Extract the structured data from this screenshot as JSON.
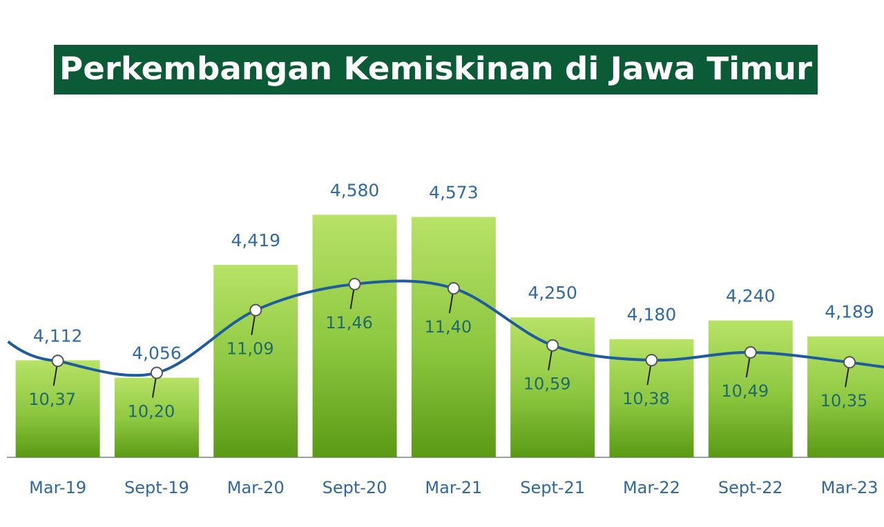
{
  "chart_data": {
    "type": "bar",
    "title": "Perkembangan Kemiskinan di Jawa Timur",
    "categories": [
      "Mar-19",
      "Sept-19",
      "Mar-20",
      "Sept-20",
      "Mar-21",
      "Sept-21",
      "Mar-22",
      "Sept-22",
      "Mar-23"
    ],
    "series": [
      {
        "type": "bar",
        "color": "#5a9a14",
        "values": [
          4.112,
          4.056,
          4.419,
          4.58,
          4.573,
          4.25,
          4.18,
          4.24,
          4.189
        ],
        "value_labels": [
          "4,112",
          "4,056",
          "4,419",
          "4,580",
          "4,573",
          "4,250",
          "4,180",
          "4,240",
          "4,189"
        ]
      },
      {
        "type": "line",
        "axis": "y2",
        "color": "#1f5c9e",
        "values": [
          10.37,
          10.2,
          11.09,
          11.46,
          11.4,
          10.59,
          10.38,
          10.49,
          10.35
        ],
        "value_labels": [
          "10,37",
          "10,20",
          "11,09",
          "11,46",
          "11,40",
          "10,59",
          "10,38",
          "10,49",
          "10,35"
        ]
      }
    ],
    "ylim": [
      3.8,
      5.0
    ],
    "y2lim": [
      9.0,
      14.3
    ]
  }
}
